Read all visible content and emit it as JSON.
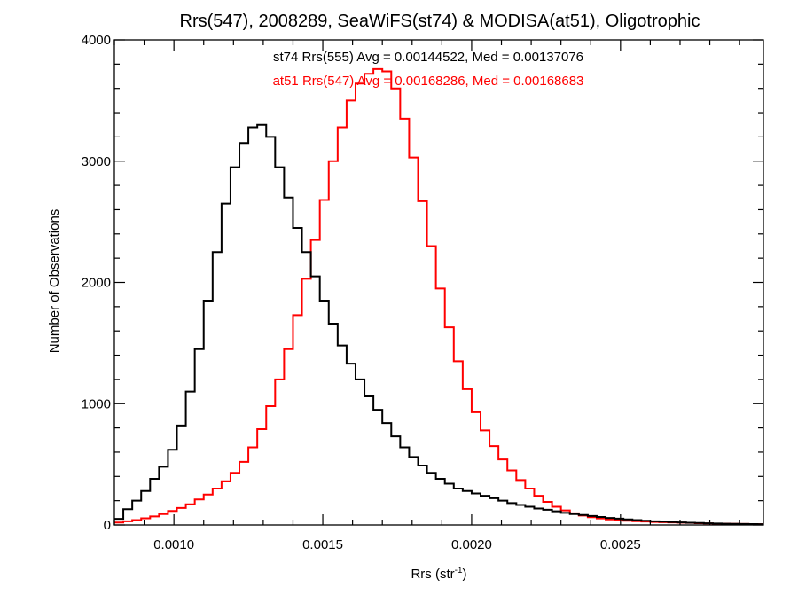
{
  "chart_data": {
    "type": "histogram",
    "title": "Rrs(547), 2008289, SeaWiFS(st74) & MODISA(at51), Oligotrophic",
    "xlabel": "Rrs (str",
    "xlabel_sup": "-1",
    "xlabel_end": ")",
    "ylabel": "Number of Observations",
    "xlim": [
      0.0008,
      0.00298
    ],
    "ylim": [
      0,
      4000
    ],
    "x_ticks": [
      {
        "value": 0.001,
        "label": "0.0010"
      },
      {
        "value": 0.0015,
        "label": "0.0015"
      },
      {
        "value": 0.002,
        "label": "0.0020"
      },
      {
        "value": 0.0025,
        "label": "0.0025"
      }
    ],
    "y_ticks": [
      {
        "value": 0,
        "label": "0"
      },
      {
        "value": 1000,
        "label": "1000"
      },
      {
        "value": 2000,
        "label": "2000"
      },
      {
        "value": 3000,
        "label": "3000"
      },
      {
        "value": 4000,
        "label": "4000"
      }
    ],
    "grid": false,
    "legend_position": "top-center",
    "series": [
      {
        "name": "st74 Rrs(555) Avg = 0.00144522, Med = 0.00137076",
        "color": "#000000",
        "bins": [
          [
            0.0008,
            50
          ],
          [
            0.00083,
            130
          ],
          [
            0.00086,
            200
          ],
          [
            0.00089,
            280
          ],
          [
            0.00092,
            380
          ],
          [
            0.00095,
            480
          ],
          [
            0.00098,
            620
          ],
          [
            0.00101,
            820
          ],
          [
            0.00104,
            1100
          ],
          [
            0.00107,
            1450
          ],
          [
            0.0011,
            1850
          ],
          [
            0.00113,
            2250
          ],
          [
            0.00116,
            2650
          ],
          [
            0.00119,
            2950
          ],
          [
            0.00122,
            3150
          ],
          [
            0.00125,
            3280
          ],
          [
            0.00128,
            3300
          ],
          [
            0.00131,
            3200
          ],
          [
            0.00134,
            2950
          ],
          [
            0.00137,
            2700
          ],
          [
            0.0014,
            2450
          ],
          [
            0.00143,
            2250
          ],
          [
            0.00146,
            2050
          ],
          [
            0.00149,
            1850
          ],
          [
            0.00152,
            1660
          ],
          [
            0.00155,
            1480
          ],
          [
            0.00158,
            1330
          ],
          [
            0.00161,
            1200
          ],
          [
            0.00164,
            1060
          ],
          [
            0.00167,
            950
          ],
          [
            0.0017,
            840
          ],
          [
            0.00173,
            730
          ],
          [
            0.00176,
            640
          ],
          [
            0.00179,
            560
          ],
          [
            0.00182,
            490
          ],
          [
            0.00185,
            430
          ],
          [
            0.00188,
            380
          ],
          [
            0.00191,
            340
          ],
          [
            0.00194,
            300
          ],
          [
            0.00197,
            280
          ],
          [
            0.002,
            260
          ],
          [
            0.00203,
            240
          ],
          [
            0.00206,
            220
          ],
          [
            0.00209,
            200
          ],
          [
            0.00212,
            180
          ],
          [
            0.00215,
            165
          ],
          [
            0.00218,
            150
          ],
          [
            0.00221,
            135
          ],
          [
            0.00224,
            125
          ],
          [
            0.00227,
            112
          ],
          [
            0.0023,
            100
          ],
          [
            0.00233,
            90
          ],
          [
            0.00236,
            82
          ],
          [
            0.00239,
            74
          ],
          [
            0.00242,
            66
          ],
          [
            0.00245,
            58
          ],
          [
            0.00248,
            52
          ],
          [
            0.00251,
            46
          ],
          [
            0.00254,
            40
          ],
          [
            0.00257,
            35
          ],
          [
            0.0026,
            30
          ],
          [
            0.00263,
            27
          ],
          [
            0.00266,
            24
          ],
          [
            0.00269,
            21
          ],
          [
            0.00272,
            18
          ],
          [
            0.00275,
            16
          ],
          [
            0.00278,
            14
          ],
          [
            0.00281,
            12
          ],
          [
            0.00284,
            10
          ],
          [
            0.00287,
            9
          ],
          [
            0.0029,
            8
          ],
          [
            0.00293,
            7
          ],
          [
            0.00296,
            6
          ]
        ]
      },
      {
        "name": "at51 Rrs(547) Avg = 0.00168286, Med = 0.00168683",
        "color": "#ff0000",
        "bins": [
          [
            0.0008,
            20
          ],
          [
            0.00083,
            30
          ],
          [
            0.00086,
            40
          ],
          [
            0.00089,
            55
          ],
          [
            0.00092,
            70
          ],
          [
            0.00095,
            90
          ],
          [
            0.00098,
            115
          ],
          [
            0.00101,
            140
          ],
          [
            0.00104,
            170
          ],
          [
            0.00107,
            210
          ],
          [
            0.0011,
            250
          ],
          [
            0.00113,
            300
          ],
          [
            0.00116,
            360
          ],
          [
            0.00119,
            430
          ],
          [
            0.00122,
            520
          ],
          [
            0.00125,
            640
          ],
          [
            0.00128,
            790
          ],
          [
            0.00131,
            980
          ],
          [
            0.00134,
            1200
          ],
          [
            0.00137,
            1450
          ],
          [
            0.0014,
            1730
          ],
          [
            0.00143,
            2030
          ],
          [
            0.00146,
            2350
          ],
          [
            0.00149,
            2680
          ],
          [
            0.00152,
            3000
          ],
          [
            0.00155,
            3280
          ],
          [
            0.00158,
            3500
          ],
          [
            0.00161,
            3640
          ],
          [
            0.00164,
            3720
          ],
          [
            0.00167,
            3760
          ],
          [
            0.0017,
            3740
          ],
          [
            0.00173,
            3600
          ],
          [
            0.00176,
            3350
          ],
          [
            0.00179,
            3030
          ],
          [
            0.00182,
            2670
          ],
          [
            0.00185,
            2300
          ],
          [
            0.00188,
            1950
          ],
          [
            0.00191,
            1630
          ],
          [
            0.00194,
            1350
          ],
          [
            0.00197,
            1120
          ],
          [
            0.002,
            930
          ],
          [
            0.00203,
            780
          ],
          [
            0.00206,
            650
          ],
          [
            0.00209,
            540
          ],
          [
            0.00212,
            450
          ],
          [
            0.00215,
            370
          ],
          [
            0.00218,
            300
          ],
          [
            0.00221,
            240
          ],
          [
            0.00224,
            190
          ],
          [
            0.00227,
            150
          ],
          [
            0.0023,
            120
          ],
          [
            0.00233,
            96
          ],
          [
            0.00236,
            78
          ],
          [
            0.00239,
            64
          ],
          [
            0.00242,
            54
          ],
          [
            0.00245,
            46
          ],
          [
            0.00248,
            40
          ],
          [
            0.00251,
            35
          ],
          [
            0.00254,
            31
          ],
          [
            0.00257,
            28
          ],
          [
            0.0026,
            25
          ],
          [
            0.00263,
            23
          ],
          [
            0.00266,
            21
          ],
          [
            0.00269,
            19
          ],
          [
            0.00272,
            17
          ],
          [
            0.00275,
            15
          ],
          [
            0.00278,
            13
          ],
          [
            0.00281,
            11
          ],
          [
            0.00284,
            10
          ],
          [
            0.00287,
            9
          ],
          [
            0.0029,
            8
          ],
          [
            0.00293,
            7
          ],
          [
            0.00296,
            6
          ]
        ]
      }
    ]
  }
}
